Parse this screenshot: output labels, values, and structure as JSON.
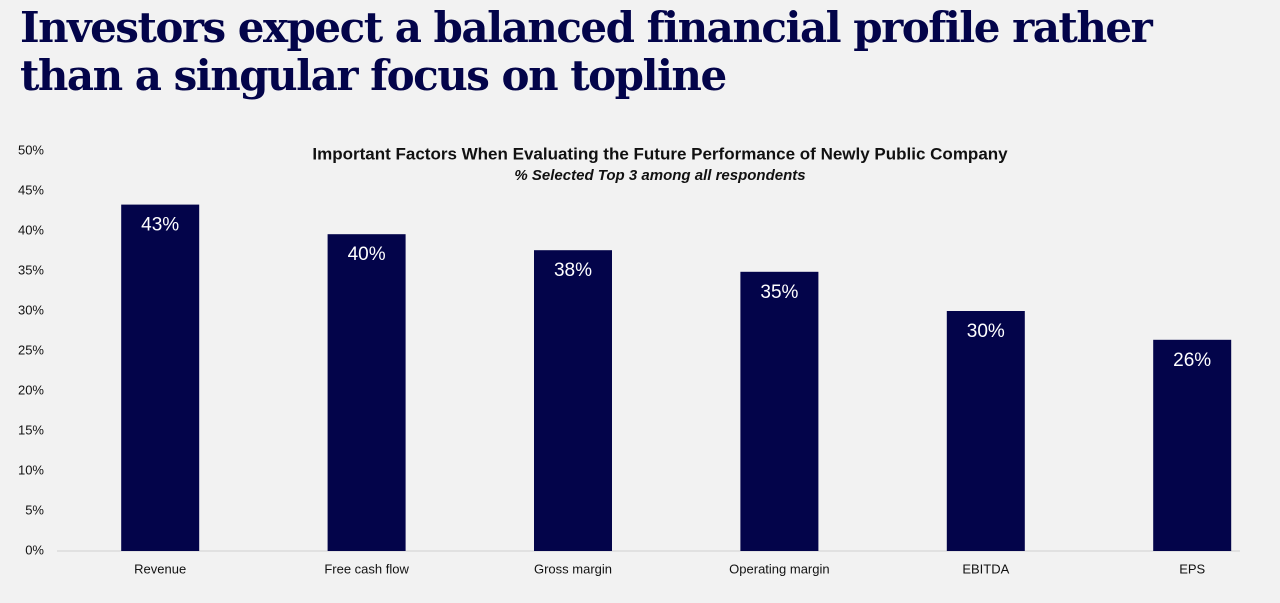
{
  "headline": "Investors expect a balanced financial profile rather than a singular focus on topline",
  "chart_data": {
    "type": "bar",
    "title": "Important Factors When Evaluating the Future Performance of Newly Public Company",
    "subtitle": "% Selected  Top 3 among all respondents",
    "categories": [
      "Revenue",
      "Free cash flow",
      "Gross margin",
      "Operating margin",
      "EBITDA",
      "EPS"
    ],
    "values": [
      43.3,
      39.6,
      37.6,
      34.9,
      30.0,
      26.4
    ],
    "value_labels": [
      "43%",
      "40%",
      "38%",
      "35%",
      "30%",
      "26%"
    ],
    "color": "#03044a",
    "ylim": [
      0,
      50
    ],
    "yticks": [
      {
        "value": 0,
        "label": "0%"
      },
      {
        "value": 5,
        "label": "5%"
      },
      {
        "value": 10,
        "label": "10%"
      },
      {
        "value": 15,
        "label": "15%"
      },
      {
        "value": 20,
        "label": "20%"
      },
      {
        "value": 25,
        "label": "25%"
      },
      {
        "value": 30,
        "label": "30%"
      },
      {
        "value": 35,
        "label": "35%"
      },
      {
        "value": 40,
        "label": "40%"
      },
      {
        "value": 45,
        "label": "45%"
      },
      {
        "value": 50,
        "label": "50%"
      }
    ],
    "grid": false
  }
}
